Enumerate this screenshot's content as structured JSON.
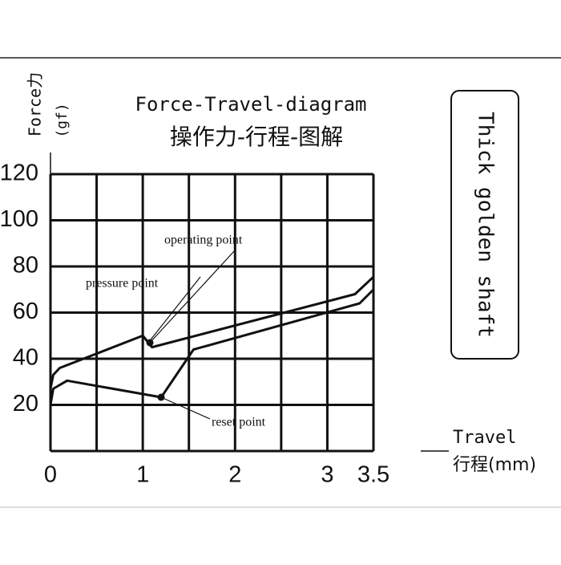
{
  "chart_data": {
    "type": "line",
    "title": "Force-Travel-diagram",
    "subtitle": "操作力-行程-图解",
    "y_label": "Force力",
    "y_unit": "(gf)",
    "x_label": "Travel",
    "x_unit": "行程(mm)",
    "side_note": "Thick golden shaft",
    "annotations": [
      "operating point",
      "pressure point",
      "reset point"
    ],
    "xlim": [
      0,
      3.5
    ],
    "ylim": [
      0,
      120
    ],
    "xticks": [
      0,
      {
        "value": 0.5,
        "label": null
      },
      1,
      {
        "value": 1.5,
        "label": null
      },
      2,
      {
        "value": 2.5,
        "label": null
      },
      3,
      3.5
    ],
    "yticks": [
      20,
      40,
      60,
      80,
      100,
      120
    ],
    "grid": true,
    "series": [
      {
        "color": "#111111",
        "x": [
          0,
          0.03,
          0.1,
          1.0,
          1.1,
          3.3,
          3.5
        ],
        "values": [
          27,
          33,
          36,
          50,
          45,
          68,
          75.5
        ]
      },
      {
        "color": "#111111",
        "x": [
          0,
          0.03,
          0.18,
          1.2,
          1.55,
          3.35,
          3.5
        ],
        "values": [
          20,
          27,
          30.5,
          23.3,
          44,
          64,
          70
        ]
      }
    ]
  }
}
